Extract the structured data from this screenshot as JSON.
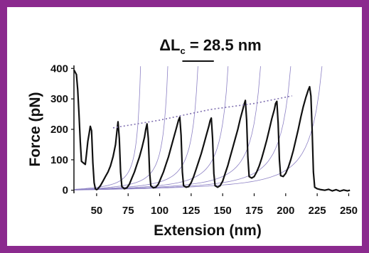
{
  "frame": {
    "border_color": "#8b2a8e"
  },
  "chart_data": {
    "type": "line",
    "title": "",
    "xlabel": "Extension (nm)",
    "ylabel": "Force (pN)",
    "xlim": [
      32,
      252
    ],
    "ylim": [
      -10,
      410
    ],
    "xticks": [
      50,
      75,
      100,
      125,
      150,
      175,
      200,
      225,
      250
    ],
    "xtick_labels": [
      "50",
      "75",
      "100",
      "125",
      "150",
      "175",
      "200",
      "225",
      "250"
    ],
    "yticks": [
      0,
      100,
      200,
      300,
      400
    ],
    "ytick_labels": [
      "0",
      "100",
      "200",
      "300",
      "400"
    ],
    "grid": false,
    "annotation": {
      "prefix": "ΔL",
      "subscript": "c",
      "suffix": " = 28.5 nm",
      "bar_x_range": [
        118,
        143
      ],
      "bar_y": 430
    },
    "series": [
      {
        "color": "#111111",
        "values_note_free": true,
        "points": [
          [
            32,
            395
          ],
          [
            34,
            380
          ],
          [
            35,
            330
          ],
          [
            36,
            250
          ],
          [
            37,
            160
          ],
          [
            38,
            95
          ],
          [
            40,
            88
          ],
          [
            41,
            85
          ],
          [
            42,
            120
          ],
          [
            43,
            160
          ],
          [
            44,
            185
          ],
          [
            45,
            210
          ],
          [
            46,
            195
          ],
          [
            47,
            90
          ],
          [
            48,
            25
          ],
          [
            49,
            5
          ],
          [
            50,
            2
          ],
          [
            51,
            5
          ],
          [
            53,
            15
          ],
          [
            55,
            30
          ],
          [
            57,
            45
          ],
          [
            59,
            60
          ],
          [
            61,
            80
          ],
          [
            63,
            110
          ],
          [
            65,
            150
          ],
          [
            66,
            190
          ],
          [
            67,
            225
          ],
          [
            68,
            170
          ],
          [
            69,
            60
          ],
          [
            70,
            12
          ],
          [
            72,
            5
          ],
          [
            74,
            8
          ],
          [
            76,
            20
          ],
          [
            78,
            40
          ],
          [
            80,
            60
          ],
          [
            82,
            85
          ],
          [
            84,
            110
          ],
          [
            86,
            140
          ],
          [
            88,
            175
          ],
          [
            89,
            200
          ],
          [
            90,
            218
          ],
          [
            91,
            170
          ],
          [
            92,
            60
          ],
          [
            93,
            15
          ],
          [
            95,
            8
          ],
          [
            97,
            10
          ],
          [
            99,
            20
          ],
          [
            101,
            40
          ],
          [
            103,
            60
          ],
          [
            105,
            85
          ],
          [
            107,
            110
          ],
          [
            109,
            140
          ],
          [
            111,
            170
          ],
          [
            113,
            200
          ],
          [
            115,
            230
          ],
          [
            116,
            240
          ],
          [
            117,
            180
          ],
          [
            118,
            60
          ],
          [
            119,
            15
          ],
          [
            121,
            10
          ],
          [
            123,
            12
          ],
          [
            125,
            25
          ],
          [
            127,
            45
          ],
          [
            129,
            70
          ],
          [
            131,
            95
          ],
          [
            133,
            120
          ],
          [
            135,
            150
          ],
          [
            137,
            180
          ],
          [
            139,
            210
          ],
          [
            140,
            228
          ],
          [
            141,
            237
          ],
          [
            142,
            170
          ],
          [
            143,
            55
          ],
          [
            144,
            15
          ],
          [
            146,
            10
          ],
          [
            148,
            15
          ],
          [
            150,
            30
          ],
          [
            152,
            55
          ],
          [
            154,
            80
          ],
          [
            156,
            110
          ],
          [
            158,
            140
          ],
          [
            160,
            170
          ],
          [
            162,
            200
          ],
          [
            164,
            235
          ],
          [
            166,
            265
          ],
          [
            167,
            282
          ],
          [
            168,
            295
          ],
          [
            169,
            230
          ],
          [
            170,
            110
          ],
          [
            171,
            45
          ],
          [
            173,
            40
          ],
          [
            175,
            45
          ],
          [
            177,
            60
          ],
          [
            179,
            80
          ],
          [
            181,
            105
          ],
          [
            183,
            135
          ],
          [
            185,
            165
          ],
          [
            187,
            200
          ],
          [
            189,
            235
          ],
          [
            191,
            265
          ],
          [
            192,
            285
          ],
          [
            193,
            292
          ],
          [
            194,
            220
          ],
          [
            195,
            100
          ],
          [
            196,
            48
          ],
          [
            198,
            45
          ],
          [
            200,
            55
          ],
          [
            202,
            75
          ],
          [
            204,
            100
          ],
          [
            206,
            130
          ],
          [
            208,
            165
          ],
          [
            210,
            200
          ],
          [
            212,
            240
          ],
          [
            214,
            275
          ],
          [
            216,
            305
          ],
          [
            218,
            330
          ],
          [
            219,
            340
          ],
          [
            220,
            310
          ],
          [
            221,
            200
          ],
          [
            222,
            60
          ],
          [
            223,
            10
          ],
          [
            225,
            5
          ],
          [
            228,
            2
          ],
          [
            231,
            0
          ],
          [
            234,
            3
          ],
          [
            237,
            -2
          ],
          [
            240,
            2
          ],
          [
            243,
            -3
          ],
          [
            246,
            1
          ],
          [
            249,
            -2
          ],
          [
            251,
            0
          ]
        ]
      },
      {
        "color": "#7f6fb0",
        "style": "dotted",
        "points": [
          [
            63,
            205
          ],
          [
            100,
            230
          ],
          [
            140,
            265
          ],
          [
            175,
            285
          ],
          [
            205,
            310
          ]
        ]
      }
    ],
    "wlc_fits": {
      "color": "#8c80c4",
      "contour_lengths": [
        70.5,
        94,
        120,
        146,
        174,
        200,
        227
      ]
    }
  }
}
